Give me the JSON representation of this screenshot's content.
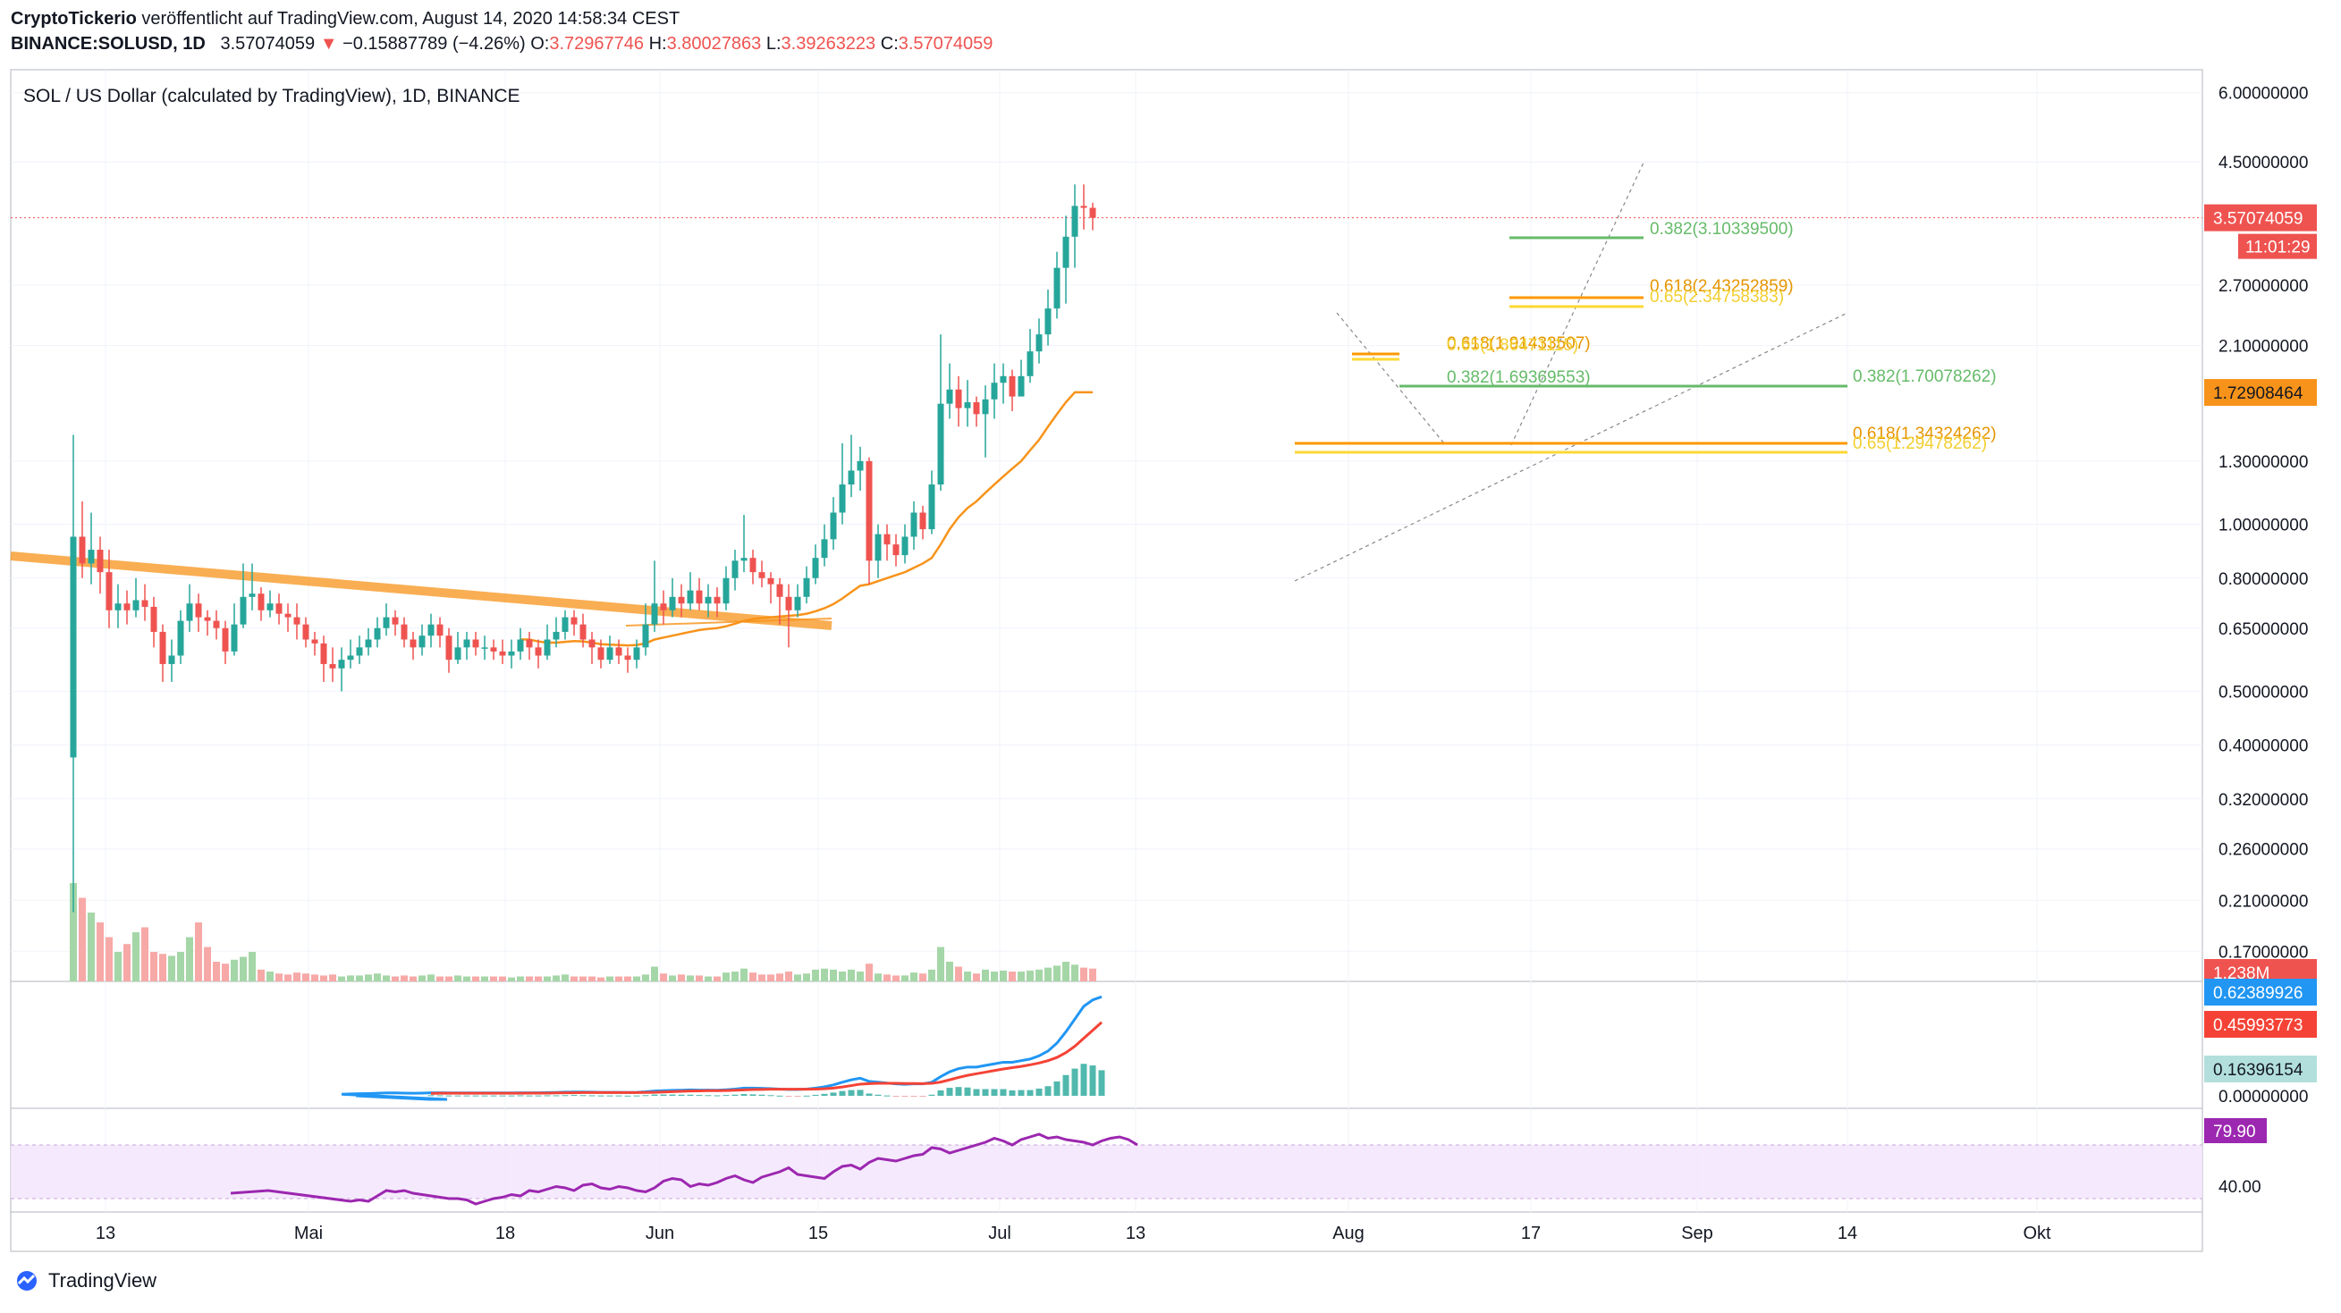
{
  "header": {
    "publisher": "CryptoTickerio",
    "published_text": " veröffentlicht auf TradingView.com, August 14, 2020 14:58:34 CEST",
    "symbol": "BINANCE:SOLUSD, 1D",
    "price": "3.57074059",
    "arrow": "▼",
    "change": "−0.15887789 (−4.26%)",
    "o_label": "O:",
    "o_value": "3.72967746",
    "h_label": "H:",
    "h_value": "3.80027863",
    "l_label": "L:",
    "l_value": "3.39263223",
    "c_label": "C:",
    "c_value": "3.57074059",
    "pane_title": "SOL / US Dollar (calculated by TradingView), 1D, BINANCE"
  },
  "brand": {
    "name": "TradingView"
  },
  "colors": {
    "up": "#26a69a",
    "down": "#ef5350",
    "ma": "#f7931a",
    "macd": "#2196f3",
    "signal": "#f44336",
    "rsi": "#9c27b0",
    "fib_green": "#4caf50",
    "fib_orange": "#ff9800",
    "fib_yellow": "#ffeb3b"
  },
  "chart_data": {
    "type": "candlestick",
    "price_axis_ticks": [
      "6.00000000",
      "4.50000000",
      "2.70000000",
      "2.10000000",
      "1.30000000",
      "1.00000000",
      "0.80000000",
      "0.65000000",
      "0.50000000",
      "0.40000000",
      "0.32000000",
      "0.26000000",
      "0.21000000",
      "0.17000000"
    ],
    "price_axis_values": [
      6.0,
      4.5,
      2.7,
      2.1,
      1.3,
      1.0,
      0.8,
      0.65,
      0.5,
      0.4,
      0.32,
      0.26,
      0.21,
      0.17
    ],
    "scale": "log",
    "time_axis_labels": [
      "13",
      "Mai",
      "18",
      "Jun",
      "15",
      "Jul",
      "13",
      "Aug",
      "17",
      "Sep",
      "14",
      "Okt"
    ],
    "last_price_label": "3.57074059",
    "countdown_label": "11:01:29",
    "ma_label": "1.72908464",
    "volume_label": "1.238M",
    "macd_labels": [
      "0.62389926",
      "0.45993773",
      "0.16396154",
      "0.00000000"
    ],
    "rsi_label": "79.90",
    "rsi_tick": "40.00",
    "fib_labels": [
      {
        "text": "0.382(3.10339500)",
        "color": "green"
      },
      {
        "text": "0.618(2.43252859)",
        "color": "orange"
      },
      {
        "text": "0.65(2.34758383)",
        "color": "yellow"
      },
      {
        "text": "0.618(1.91433507)",
        "color": "orange"
      },
      {
        "text": "0.65(1.86471115)",
        "color": "yellow"
      },
      {
        "text": "0.382(1.69369553)",
        "color": "green"
      },
      {
        "text": "0.382(1.70078262)",
        "color": "green"
      },
      {
        "text": "0.618(1.34324262)",
        "color": "orange"
      },
      {
        "text": "0.65(1.29478262)",
        "color": "yellow"
      }
    ],
    "candles": [
      [
        0.38,
        0.95,
        1.45,
        0.2
      ],
      [
        0.95,
        0.85,
        1.1,
        0.8
      ],
      [
        0.85,
        0.9,
        1.05,
        0.78
      ],
      [
        0.9,
        0.82,
        0.95,
        0.75
      ],
      [
        0.82,
        0.7,
        0.9,
        0.65
      ],
      [
        0.7,
        0.72,
        0.78,
        0.65
      ],
      [
        0.72,
        0.7,
        0.76,
        0.66
      ],
      [
        0.7,
        0.73,
        0.8,
        0.68
      ],
      [
        0.73,
        0.71,
        0.78,
        0.67
      ],
      [
        0.71,
        0.64,
        0.74,
        0.6
      ],
      [
        0.64,
        0.56,
        0.66,
        0.52
      ],
      [
        0.56,
        0.58,
        0.62,
        0.52
      ],
      [
        0.58,
        0.67,
        0.7,
        0.56
      ],
      [
        0.67,
        0.72,
        0.78,
        0.64
      ],
      [
        0.72,
        0.68,
        0.75,
        0.64
      ],
      [
        0.68,
        0.67,
        0.7,
        0.63
      ],
      [
        0.67,
        0.65,
        0.7,
        0.62
      ],
      [
        0.65,
        0.59,
        0.67,
        0.56
      ],
      [
        0.59,
        0.66,
        0.72,
        0.58
      ],
      [
        0.66,
        0.74,
        0.85,
        0.65
      ],
      [
        0.74,
        0.75,
        0.85,
        0.7
      ],
      [
        0.75,
        0.7,
        0.77,
        0.67
      ],
      [
        0.7,
        0.72,
        0.76,
        0.68
      ],
      [
        0.72,
        0.69,
        0.75,
        0.66
      ],
      [
        0.69,
        0.68,
        0.72,
        0.64
      ],
      [
        0.68,
        0.66,
        0.72,
        0.62
      ],
      [
        0.66,
        0.62,
        0.68,
        0.6
      ],
      [
        0.62,
        0.61,
        0.64,
        0.58
      ],
      [
        0.61,
        0.56,
        0.63,
        0.52
      ],
      [
        0.56,
        0.55,
        0.6,
        0.52
      ],
      [
        0.55,
        0.57,
        0.6,
        0.5
      ],
      [
        0.57,
        0.58,
        0.62,
        0.55
      ],
      [
        0.58,
        0.6,
        0.63,
        0.56
      ],
      [
        0.6,
        0.62,
        0.65,
        0.58
      ],
      [
        0.62,
        0.65,
        0.68,
        0.6
      ],
      [
        0.65,
        0.68,
        0.72,
        0.63
      ],
      [
        0.68,
        0.66,
        0.7,
        0.63
      ],
      [
        0.66,
        0.62,
        0.68,
        0.6
      ],
      [
        0.62,
        0.6,
        0.64,
        0.57
      ],
      [
        0.6,
        0.63,
        0.66,
        0.58
      ],
      [
        0.63,
        0.66,
        0.69,
        0.6
      ],
      [
        0.66,
        0.63,
        0.68,
        0.6
      ],
      [
        0.63,
        0.57,
        0.65,
        0.54
      ],
      [
        0.57,
        0.6,
        0.64,
        0.56
      ],
      [
        0.6,
        0.62,
        0.64,
        0.57
      ],
      [
        0.62,
        0.6,
        0.64,
        0.58
      ],
      [
        0.6,
        0.6,
        0.63,
        0.57
      ],
      [
        0.6,
        0.59,
        0.62,
        0.57
      ],
      [
        0.59,
        0.58,
        0.62,
        0.56
      ],
      [
        0.58,
        0.59,
        0.62,
        0.55
      ],
      [
        0.59,
        0.62,
        0.65,
        0.57
      ],
      [
        0.62,
        0.6,
        0.64,
        0.57
      ],
      [
        0.6,
        0.58,
        0.62,
        0.55
      ],
      [
        0.58,
        0.62,
        0.66,
        0.57
      ],
      [
        0.62,
        0.64,
        0.68,
        0.6
      ],
      [
        0.64,
        0.68,
        0.7,
        0.62
      ],
      [
        0.68,
        0.66,
        0.7,
        0.63
      ],
      [
        0.66,
        0.62,
        0.69,
        0.6
      ],
      [
        0.62,
        0.6,
        0.64,
        0.56
      ],
      [
        0.6,
        0.57,
        0.62,
        0.55
      ],
      [
        0.57,
        0.6,
        0.63,
        0.56
      ],
      [
        0.6,
        0.58,
        0.62,
        0.56
      ],
      [
        0.58,
        0.57,
        0.6,
        0.54
      ],
      [
        0.57,
        0.6,
        0.62,
        0.55
      ],
      [
        0.6,
        0.66,
        0.72,
        0.58
      ],
      [
        0.66,
        0.72,
        0.86,
        0.64
      ],
      [
        0.72,
        0.7,
        0.76,
        0.66
      ],
      [
        0.7,
        0.74,
        0.8,
        0.68
      ],
      [
        0.74,
        0.72,
        0.78,
        0.68
      ],
      [
        0.72,
        0.76,
        0.82,
        0.7
      ],
      [
        0.76,
        0.72,
        0.8,
        0.7
      ],
      [
        0.72,
        0.74,
        0.78,
        0.68
      ],
      [
        0.74,
        0.72,
        0.77,
        0.68
      ],
      [
        0.72,
        0.8,
        0.84,
        0.7
      ],
      [
        0.8,
        0.86,
        0.9,
        0.76
      ],
      [
        0.86,
        0.87,
        1.04,
        0.82
      ],
      [
        0.87,
        0.82,
        0.9,
        0.78
      ],
      [
        0.82,
        0.8,
        0.86,
        0.77
      ],
      [
        0.8,
        0.78,
        0.82,
        0.72
      ],
      [
        0.78,
        0.74,
        0.8,
        0.66
      ],
      [
        0.74,
        0.7,
        0.78,
        0.6
      ],
      [
        0.7,
        0.74,
        0.78,
        0.68
      ],
      [
        0.74,
        0.8,
        0.84,
        0.72
      ],
      [
        0.8,
        0.87,
        0.92,
        0.78
      ],
      [
        0.87,
        0.94,
        1.0,
        0.84
      ],
      [
        0.94,
        1.05,
        1.12,
        0.9
      ],
      [
        1.05,
        1.18,
        1.4,
        1.0
      ],
      [
        1.18,
        1.25,
        1.45,
        1.12
      ],
      [
        1.25,
        1.3,
        1.38,
        1.15
      ],
      [
        1.3,
        0.86,
        1.32,
        0.78
      ],
      [
        0.86,
        0.96,
        1.0,
        0.8
      ],
      [
        0.96,
        0.92,
        1.0,
        0.86
      ],
      [
        0.92,
        0.88,
        0.96,
        0.84
      ],
      [
        0.88,
        0.95,
        1.0,
        0.85
      ],
      [
        0.95,
        1.05,
        1.1,
        0.9
      ],
      [
        1.05,
        0.98,
        1.08,
        0.94
      ],
      [
        0.98,
        1.18,
        1.25,
        0.96
      ],
      [
        1.18,
        1.65,
        2.2,
        1.15
      ],
      [
        1.65,
        1.75,
        1.95,
        1.55
      ],
      [
        1.75,
        1.62,
        1.85,
        1.5
      ],
      [
        1.62,
        1.66,
        1.82,
        1.5
      ],
      [
        1.66,
        1.58,
        1.7,
        1.5
      ],
      [
        1.58,
        1.68,
        1.78,
        1.32
      ],
      [
        1.68,
        1.8,
        1.95,
        1.55
      ],
      [
        1.8,
        1.85,
        1.95,
        1.65
      ],
      [
        1.85,
        1.7,
        1.9,
        1.6
      ],
      [
        1.7,
        1.85,
        1.98,
        1.72
      ],
      [
        1.85,
        2.05,
        2.25,
        1.8
      ],
      [
        2.05,
        2.2,
        2.35,
        1.95
      ],
      [
        2.2,
        2.45,
        2.65,
        2.1
      ],
      [
        2.45,
        2.9,
        3.1,
        2.35
      ],
      [
        2.9,
        3.3,
        3.6,
        2.5
      ],
      [
        3.3,
        3.75,
        4.1,
        2.9
      ],
      [
        3.75,
        3.72,
        4.1,
        3.4
      ],
      [
        3.72,
        3.57,
        3.8,
        3.39
      ]
    ],
    "volumes": [
      1.0,
      0.85,
      0.7,
      0.6,
      0.45,
      0.3,
      0.38,
      0.5,
      0.55,
      0.3,
      0.28,
      0.26,
      0.3,
      0.45,
      0.6,
      0.35,
      0.2,
      0.18,
      0.22,
      0.25,
      0.3,
      0.12,
      0.1,
      0.08,
      0.07,
      0.09,
      0.08,
      0.07,
      0.06,
      0.07,
      0.05,
      0.06,
      0.06,
      0.07,
      0.08,
      0.06,
      0.05,
      0.06,
      0.05,
      0.06,
      0.07,
      0.05,
      0.05,
      0.06,
      0.05,
      0.05,
      0.05,
      0.05,
      0.05,
      0.04,
      0.05,
      0.05,
      0.05,
      0.05,
      0.06,
      0.07,
      0.05,
      0.05,
      0.05,
      0.04,
      0.05,
      0.05,
      0.05,
      0.05,
      0.07,
      0.15,
      0.08,
      0.06,
      0.07,
      0.06,
      0.06,
      0.05,
      0.05,
      0.09,
      0.1,
      0.13,
      0.09,
      0.07,
      0.07,
      0.08,
      0.1,
      0.07,
      0.08,
      0.12,
      0.13,
      0.12,
      0.1,
      0.12,
      0.1,
      0.18,
      0.08,
      0.07,
      0.06,
      0.06,
      0.09,
      0.08,
      0.12,
      0.35,
      0.2,
      0.15,
      0.1,
      0.08,
      0.12,
      0.1,
      0.11,
      0.1,
      0.1,
      0.11,
      0.12,
      0.14,
      0.16,
      0.2,
      0.17,
      0.14,
      0.13
    ],
    "ma": [
      null,
      null,
      null,
      null,
      null,
      null,
      null,
      null,
      null,
      null,
      null,
      null,
      null,
      null,
      null,
      null,
      null,
      null,
      null,
      null,
      null,
      null,
      null,
      null,
      null,
      null,
      null,
      null,
      null,
      null,
      null,
      null,
      null,
      null,
      null,
      null,
      null,
      null,
      null,
      null,
      null,
      null,
      null,
      null,
      null,
      null,
      null,
      null,
      null,
      null,
      0.62,
      0.62,
      0.615,
      0.612,
      0.612,
      0.614,
      0.616,
      0.615,
      0.612,
      0.608,
      0.607,
      0.606,
      0.605,
      0.606,
      0.61,
      0.62,
      0.625,
      0.63,
      0.635,
      0.64,
      0.645,
      0.648,
      0.65,
      0.655,
      0.662,
      0.67,
      0.675,
      0.678,
      0.68,
      0.682,
      0.684,
      0.686,
      0.69,
      0.697,
      0.706,
      0.718,
      0.735,
      0.755,
      0.775,
      0.78,
      0.79,
      0.8,
      0.81,
      0.82,
      0.835,
      0.85,
      0.87,
      0.92,
      0.98,
      1.03,
      1.07,
      1.1,
      1.14,
      1.18,
      1.22,
      1.26,
      1.3,
      1.36,
      1.42,
      1.5,
      1.58,
      1.66,
      1.73,
      1.73,
      1.73
    ],
    "macd": [
      null,
      null,
      null,
      null,
      null,
      null,
      null,
      null,
      null,
      null,
      null,
      null,
      null,
      null,
      null,
      null,
      null,
      null,
      null,
      null,
      null,
      null,
      null,
      null,
      null,
      null,
      null,
      null,
      null,
      null,
      0.01,
      0.012,
      0.013,
      0.014,
      0.016,
      0.018,
      0.018,
      0.017,
      0.016,
      0.017,
      0.019,
      0.019,
      0.018,
      0.018,
      0.018,
      0.018,
      0.018,
      0.018,
      0.018,
      0.018,
      0.019,
      0.019,
      0.019,
      0.02,
      0.021,
      0.023,
      0.024,
      0.024,
      0.023,
      0.022,
      0.022,
      0.022,
      0.021,
      0.022,
      0.025,
      0.03,
      0.032,
      0.034,
      0.035,
      0.037,
      0.036,
      0.036,
      0.035,
      0.038,
      0.042,
      0.048,
      0.048,
      0.047,
      0.045,
      0.042,
      0.04,
      0.04,
      0.042,
      0.048,
      0.056,
      0.068,
      0.085,
      0.1,
      0.11,
      0.09,
      0.085,
      0.08,
      0.075,
      0.072,
      0.075,
      0.075,
      0.085,
      0.12,
      0.15,
      0.17,
      0.18,
      0.18,
      0.19,
      0.2,
      0.21,
      0.21,
      0.22,
      0.23,
      0.25,
      0.28,
      0.33,
      0.4,
      0.48,
      0.56,
      0.6,
      0.62
    ],
    "signal": [
      null,
      null,
      null,
      null,
      null,
      null,
      null,
      null,
      null,
      null,
      null,
      null,
      null,
      null,
      null,
      null,
      null,
      null,
      null,
      null,
      null,
      null,
      null,
      null,
      null,
      null,
      null,
      null,
      null,
      null,
      null,
      null,
      null,
      null,
      null,
      null,
      null,
      null,
      null,
      null,
      0.015,
      0.016,
      0.016,
      0.016,
      0.016,
      0.016,
      0.016,
      0.016,
      0.016,
      0.016,
      0.016,
      0.017,
      0.017,
      0.017,
      0.018,
      0.019,
      0.019,
      0.02,
      0.02,
      0.02,
      0.02,
      0.02,
      0.02,
      0.02,
      0.021,
      0.022,
      0.024,
      0.026,
      0.028,
      0.03,
      0.031,
      0.032,
      0.032,
      0.033,
      0.035,
      0.037,
      0.039,
      0.04,
      0.041,
      0.041,
      0.041,
      0.041,
      0.041,
      0.042,
      0.044,
      0.048,
      0.055,
      0.064,
      0.073,
      0.076,
      0.078,
      0.078,
      0.078,
      0.077,
      0.077,
      0.076,
      0.078,
      0.086,
      0.1,
      0.115,
      0.128,
      0.138,
      0.148,
      0.158,
      0.168,
      0.176,
      0.184,
      0.194,
      0.205,
      0.22,
      0.24,
      0.27,
      0.31,
      0.36,
      0.41,
      0.46
    ],
    "rsi": [
      null,
      null,
      null,
      null,
      null,
      null,
      null,
      null,
      null,
      null,
      null,
      null,
      null,
      null,
      null,
      null,
      null,
      null,
      null,
      null,
      null,
      null,
      null,
      null,
      null,
      null,
      null,
      null,
      null,
      null,
      null,
      38,
      39,
      38,
      42,
      46,
      45,
      46,
      44,
      43,
      42,
      41,
      40,
      40,
      39,
      36,
      38,
      40,
      41,
      43,
      42,
      46,
      45,
      47,
      49,
      48,
      46,
      50,
      51,
      48,
      47,
      49,
      48,
      46,
      45,
      48,
      53,
      55,
      54,
      49,
      51,
      50,
      52,
      55,
      57,
      54,
      52,
      56,
      58,
      60,
      63,
      58,
      57,
      56,
      55,
      60,
      64,
      65,
      62,
      67,
      70,
      69,
      68,
      70,
      72,
      73,
      78,
      77,
      74,
      76,
      78,
      80,
      82,
      85,
      83,
      80,
      84,
      86,
      88,
      85,
      86,
      84,
      83,
      82,
      80,
      83,
      85,
      86,
      84,
      80
    ]
  }
}
